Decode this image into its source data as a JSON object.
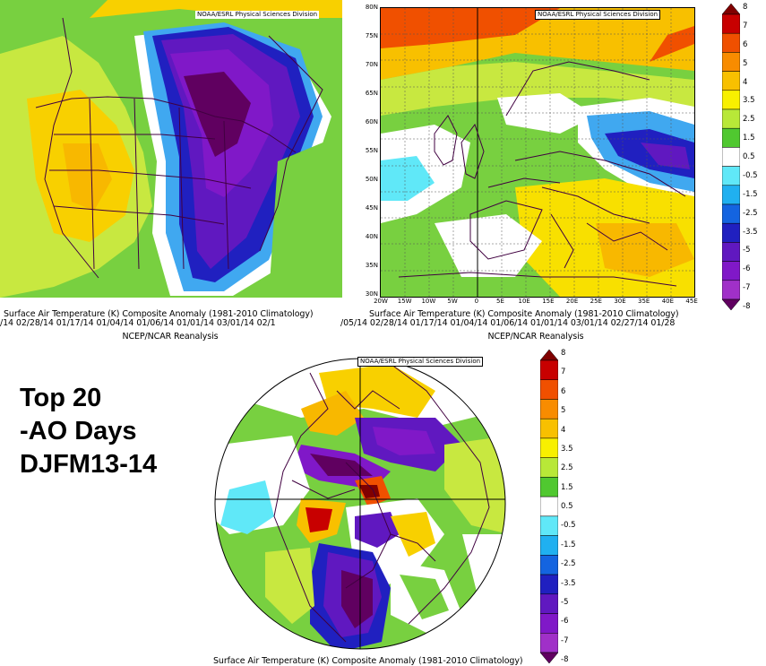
{
  "colorbar": {
    "labels": [
      "8",
      "7",
      "6",
      "5",
      "4",
      "3.5",
      "2.5",
      "1.5",
      "0.5",
      "-0.5",
      "-1.5",
      "-2.5",
      "-3.5",
      "-5",
      "-6",
      "-7",
      "-8"
    ],
    "colors": [
      "#800000",
      "#c80000",
      "#f05000",
      "#f88c00",
      "#f8c000",
      "#f8f000",
      "#b8e838",
      "#50c830",
      "#ffffff",
      "#60e8f8",
      "#20b0f0",
      "#1464e0",
      "#2020c0",
      "#6018c0",
      "#8018c8",
      "#a030c8",
      "#600060"
    ]
  },
  "maps": {
    "na": {
      "credit": "NOAA/ESRL Physical Sciences Division"
    },
    "eu": {
      "credit": "NOAA/ESRL Physical Sciences Division"
    },
    "polar": {
      "credit": "NOAA/ESRL Physical Sciences Division"
    }
  },
  "eu_axes": {
    "lat_labels": [
      "80N",
      "75N",
      "70N",
      "65N",
      "60N",
      "55N",
      "50N",
      "45N",
      "40N",
      "35N",
      "30N"
    ],
    "lon_labels": [
      "20W",
      "15W",
      "10W",
      "5W",
      "0",
      "5E",
      "10E",
      "15E",
      "20E",
      "25E",
      "30E",
      "35E",
      "40E",
      "45E"
    ]
  },
  "captions": {
    "left_title": "Surface Air Temperature (K) Composite Anomaly (1981-2010 Climatology)",
    "left_dates": "/14 02/28/14 01/17/14 01/04/14 01/06/14 01/01/14 03/01/14 02/1",
    "right_title": "Surface Air Temperature (K) Composite Anomaly (1981-2010 Climatology)",
    "right_dates": "/05/14 02/28/14 01/17/14 01/04/14 01/06/14 01/01/14 03/01/14 02/27/14 01/28",
    "left_source": "NCEP/NCAR Reanalysis",
    "right_source": "NCEP/NCAR Reanalysis",
    "bottom_title": "Surface Air Temperature (K) Composite Anomaly (1981-2010 Climatology)"
  },
  "heading": {
    "line1": "Top 20",
    "line2": "-AO Days",
    "line3": "DJFM13-14"
  }
}
